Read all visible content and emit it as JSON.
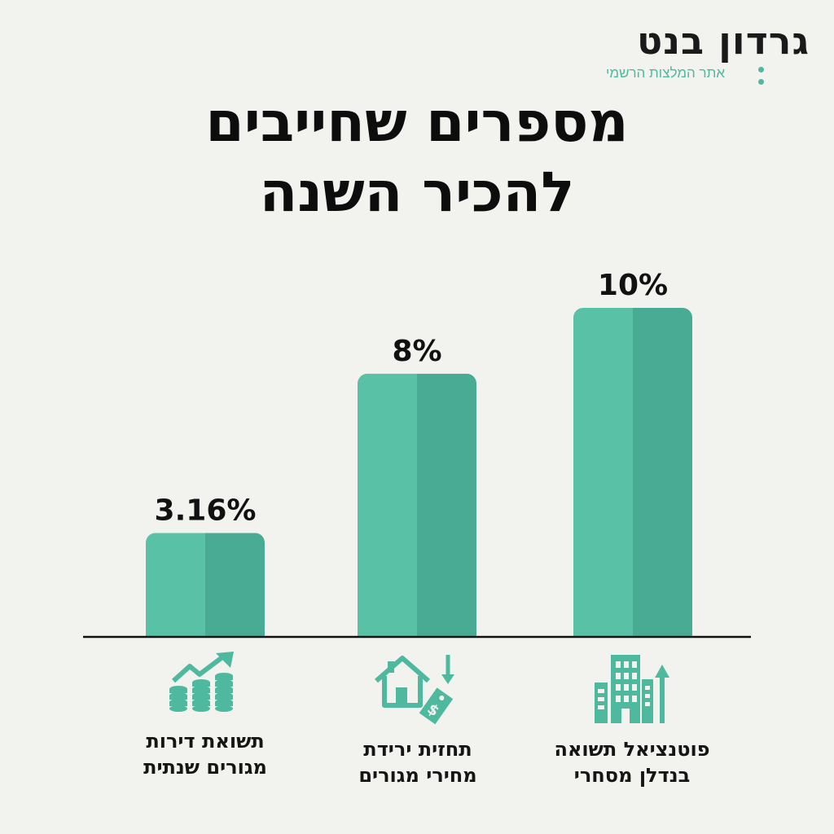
{
  "logo": {
    "name": "גרדון בנט",
    "tagline": "אתר המלצות הרשמי"
  },
  "title_line1": "מספרים שחייבים",
  "title_line2": "להכיר השנה",
  "colors": {
    "bar_light": "#58c1a6",
    "bar_dark": "#4aab95",
    "icon": "#4fb9a0",
    "baseline": "#111111",
    "background": "#f2f2ee"
  },
  "chart_data": {
    "type": "bar",
    "categories": [
      "תשואת דירות מגורים שנתית",
      "תחזית ירידת מחירי מגורים",
      "פוטנציאל תשואה בנדלן מסחרי"
    ],
    "values": [
      3.16,
      8,
      10
    ],
    "value_labels": [
      "3.16%",
      "8%",
      "10%"
    ],
    "ylim": [
      0,
      10
    ],
    "grid": false,
    "legend": "none"
  },
  "categories": [
    {
      "line1": "תשואת דירות",
      "line2": "מגורים שנתית",
      "icon": "coins-growth-icon"
    },
    {
      "line1": "תחזית ירידת",
      "line2": "מחירי מגורים",
      "icon": "house-price-down-icon"
    },
    {
      "line1": "פוטנציאל תשואה",
      "line2": "בנדלן מסחרי",
      "icon": "office-building-up-icon"
    }
  ]
}
